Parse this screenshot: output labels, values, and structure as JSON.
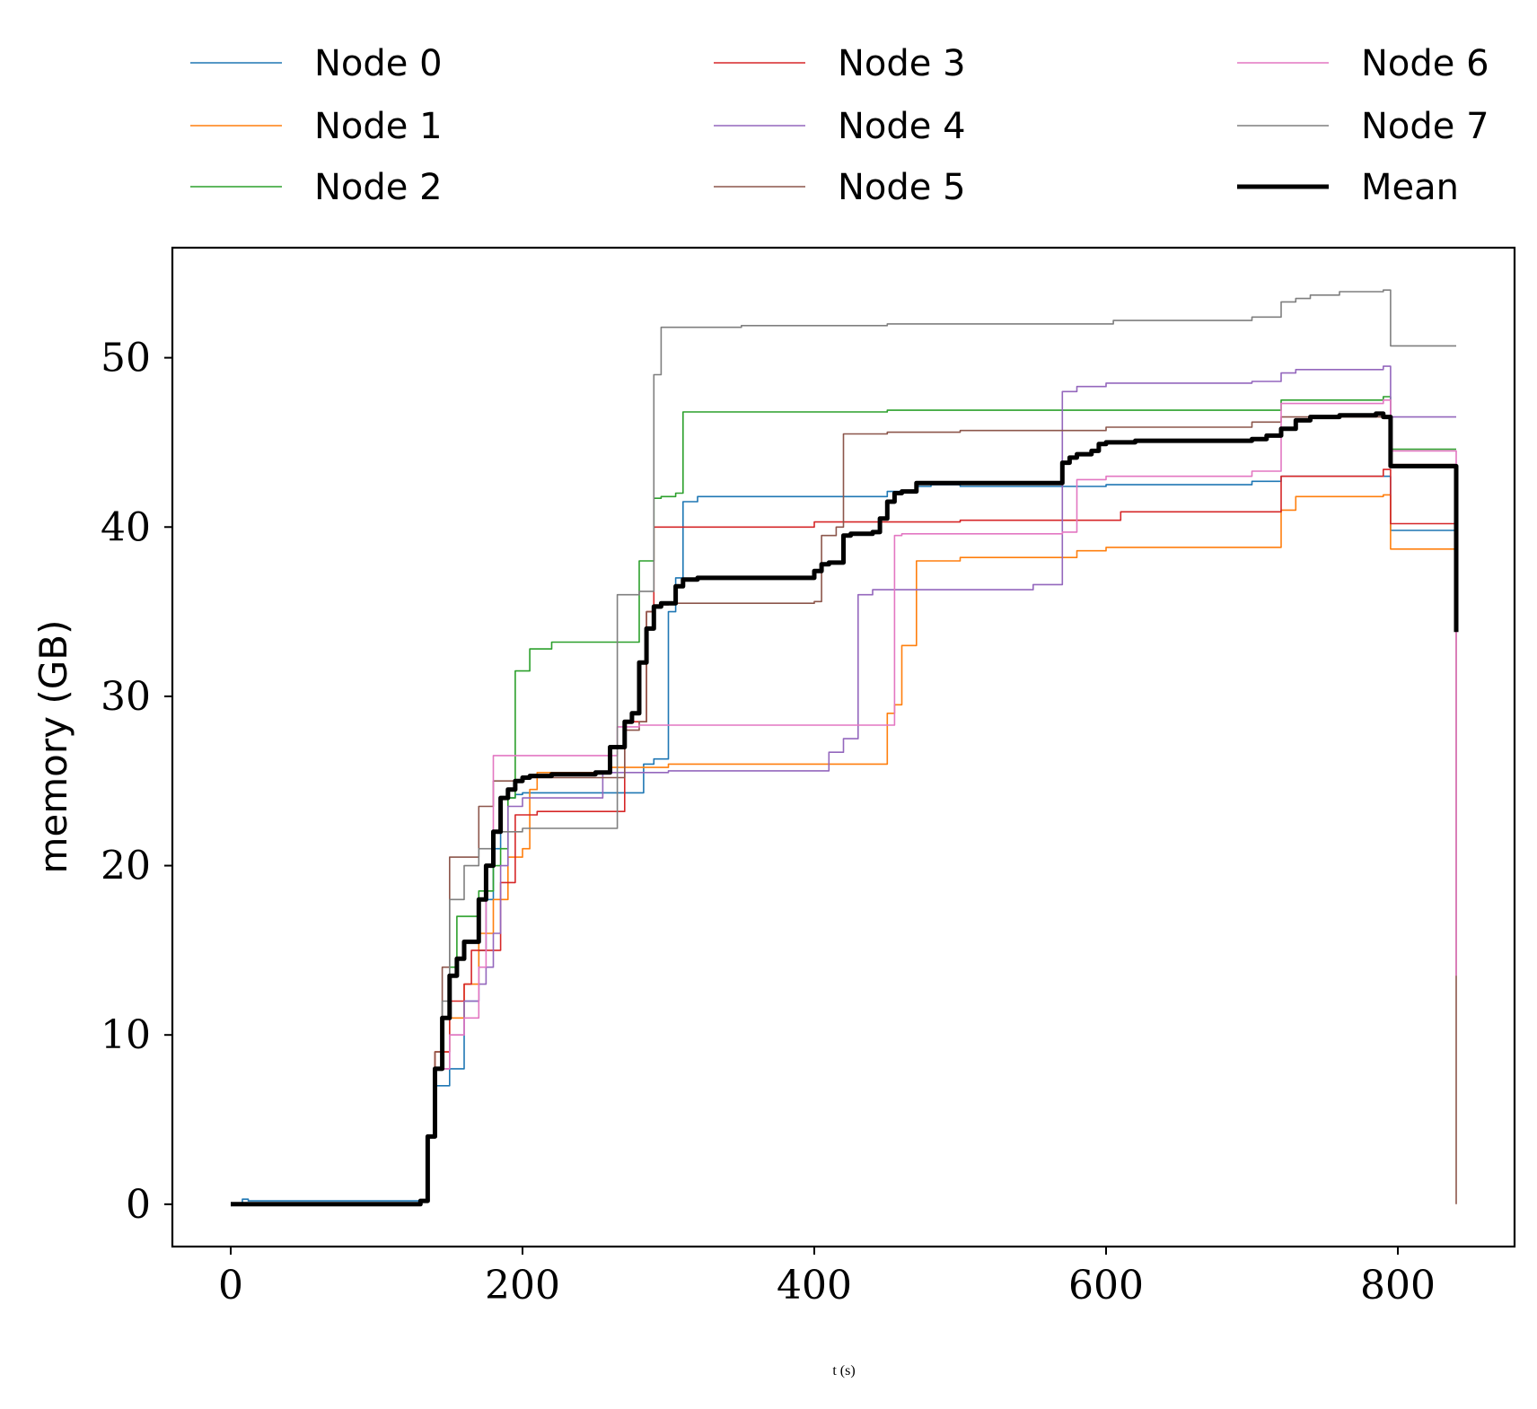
{
  "chart_data": {
    "type": "line",
    "title": "",
    "xlabel_var": "t",
    "xlabel_unit": " (s)",
    "ylabel": "memory (GB)",
    "xlim": [
      -40,
      880
    ],
    "ylim": [
      -2.5,
      56.5
    ],
    "xticks": [
      0,
      200,
      400,
      600,
      800
    ],
    "yticks": [
      0,
      10,
      20,
      30,
      40,
      50
    ],
    "legend_position": "top",
    "series": [
      {
        "name": "Node 0",
        "color": "#1f77b4",
        "width": 1.6,
        "x": [
          0,
          8,
          12,
          15,
          130,
          135,
          140,
          145,
          150,
          160,
          170,
          175,
          180,
          185,
          195,
          200,
          230,
          260,
          280,
          283,
          290,
          300,
          305,
          310,
          320,
          400,
          450,
          470,
          480,
          500,
          600,
          700,
          720,
          790,
          795,
          840
        ],
        "y": [
          0,
          0.3,
          0.2,
          0.2,
          0.2,
          4,
          7,
          7,
          8,
          12,
          15,
          18,
          21,
          24,
          24.2,
          24.3,
          24.3,
          24.3,
          24.3,
          26,
          26.3,
          35,
          37,
          41.5,
          41.8,
          41.8,
          42.1,
          42.4,
          42.5,
          42.4,
          42.5,
          42.7,
          43,
          43,
          39.8,
          39.8
        ]
      },
      {
        "name": "Node 1",
        "color": "#ff7f0e",
        "width": 1.6,
        "x": [
          0,
          130,
          135,
          140,
          150,
          160,
          170,
          180,
          190,
          200,
          205,
          210,
          260,
          300,
          400,
          440,
          450,
          455,
          460,
          470,
          500,
          560,
          580,
          600,
          700,
          720,
          730,
          790,
          795,
          840
        ],
        "y": [
          0,
          0.2,
          4,
          9,
          11,
          13,
          16,
          18,
          20.5,
          21,
          24.5,
          25.5,
          25.8,
          26,
          26,
          26,
          29,
          29.5,
          33,
          38,
          38.2,
          38.2,
          38.6,
          38.8,
          38.8,
          41,
          41.8,
          41.9,
          38.7,
          38.7
        ]
      },
      {
        "name": "Node 2",
        "color": "#2ca02c",
        "width": 1.6,
        "x": [
          0,
          130,
          135,
          140,
          145,
          150,
          155,
          160,
          170,
          180,
          185,
          190,
          195,
          205,
          220,
          240,
          260,
          270,
          280,
          290,
          295,
          305,
          310,
          340,
          450,
          500,
          600,
          700,
          720,
          790,
          795,
          840
        ],
        "y": [
          0,
          0.2,
          4,
          8,
          11,
          14,
          17,
          17,
          18.5,
          20,
          21,
          24,
          31.5,
          32.8,
          33.2,
          33.2,
          33.2,
          33.2,
          38,
          41.7,
          41.8,
          42,
          46.8,
          46.8,
          46.9,
          46.9,
          46.9,
          46.9,
          47.5,
          47.7,
          44.6,
          44.6
        ]
      },
      {
        "name": "Node 3",
        "color": "#d62728",
        "width": 1.6,
        "x": [
          0,
          130,
          135,
          140,
          150,
          160,
          165,
          175,
          185,
          195,
          200,
          210,
          255,
          270,
          280,
          285,
          290,
          300,
          380,
          400,
          500,
          560,
          610,
          700,
          720,
          790,
          795,
          840
        ],
        "y": [
          0,
          0.2,
          4,
          9,
          12,
          13,
          15,
          15,
          19,
          23,
          23,
          23.2,
          23.2,
          28.5,
          28.5,
          35,
          40,
          40,
          40,
          40.3,
          40.4,
          40.4,
          40.9,
          40.9,
          43,
          43.4,
          40.2,
          40.2
        ]
      },
      {
        "name": "Node 4",
        "color": "#9467bd",
        "width": 1.6,
        "x": [
          0,
          130,
          135,
          140,
          150,
          160,
          170,
          175,
          180,
          185,
          190,
          200,
          255,
          300,
          350,
          400,
          410,
          420,
          430,
          440,
          450,
          500,
          550,
          560,
          570,
          580,
          600,
          650,
          700,
          720,
          730,
          790,
          795,
          840
        ],
        "y": [
          0,
          0.2,
          4,
          8,
          10,
          12,
          13,
          14,
          16,
          20,
          23.5,
          24,
          25.5,
          25.6,
          25.6,
          25.6,
          26.7,
          27.5,
          36,
          36.3,
          36.3,
          36.3,
          36.6,
          36.6,
          48,
          48.3,
          48.5,
          48.5,
          48.6,
          49.1,
          49.3,
          49.5,
          46.5,
          46.5
        ]
      },
      {
        "name": "Node 5",
        "color": "#8c564b",
        "width": 1.6,
        "x": [
          0,
          130,
          135,
          140,
          145,
          150,
          160,
          170,
          180,
          190,
          200,
          250,
          260,
          270,
          280,
          285,
          290,
          300,
          350,
          400,
          405,
          415,
          420,
          450,
          500,
          600,
          700,
          720,
          790,
          795,
          840,
          840
        ],
        "y": [
          0,
          0.2,
          4,
          9,
          14,
          20.5,
          20.5,
          23.5,
          25,
          25,
          25.2,
          25.2,
          25.2,
          28,
          28.5,
          35,
          35.4,
          35.5,
          35.5,
          35.6,
          39.5,
          40,
          45.5,
          45.6,
          45.7,
          45.9,
          46.2,
          46.5,
          46.5,
          43.7,
          43.7,
          0
        ]
      },
      {
        "name": "Node 6",
        "color": "#e377c2",
        "width": 1.6,
        "x": [
          0,
          130,
          135,
          140,
          150,
          160,
          170,
          175,
          180,
          200,
          230,
          260,
          265,
          280,
          300,
          350,
          400,
          420,
          445,
          455,
          460,
          500,
          560,
          570,
          580,
          600,
          700,
          720,
          790,
          795,
          840,
          840
        ],
        "y": [
          0,
          0.2,
          4,
          8,
          10,
          11,
          14,
          20,
          26.5,
          26.5,
          26.5,
          26.5,
          28.2,
          28.3,
          28.3,
          28.3,
          28.3,
          28.3,
          28.3,
          39.5,
          39.6,
          39.6,
          39.6,
          39.7,
          42.8,
          43,
          43.3,
          47.3,
          47.5,
          44.5,
          44.5,
          13.5
        ]
      },
      {
        "name": "Node 7",
        "color": "#7f7f7f",
        "width": 1.6,
        "x": [
          0,
          130,
          135,
          140,
          145,
          150,
          160,
          170,
          180,
          190,
          200,
          220,
          240,
          250,
          260,
          265,
          270,
          280,
          290,
          295,
          300,
          350,
          400,
          450,
          500,
          600,
          605,
          700,
          720,
          730,
          740,
          760,
          790,
          795,
          840
        ],
        "y": [
          0,
          0.2,
          4,
          8,
          12,
          18,
          20,
          21,
          22,
          22,
          22.2,
          22.2,
          22.2,
          22.2,
          22.2,
          36,
          36,
          36.2,
          49,
          51.8,
          51.8,
          51.9,
          51.9,
          52,
          52,
          52,
          52.2,
          52.4,
          53.3,
          53.5,
          53.7,
          53.9,
          54,
          50.7,
          50.7
        ]
      },
      {
        "name": "Mean",
        "color": "#000000",
        "width": 5,
        "x": [
          0,
          130,
          135,
          140,
          145,
          150,
          155,
          160,
          170,
          175,
          180,
          185,
          190,
          195,
          200,
          205,
          220,
          250,
          255,
          260,
          270,
          275,
          280,
          285,
          290,
          295,
          300,
          305,
          310,
          320,
          350,
          395,
          400,
          405,
          410,
          420,
          425,
          440,
          445,
          450,
          455,
          460,
          470,
          480,
          500,
          565,
          570,
          575,
          580,
          590,
          595,
          600,
          620,
          650,
          700,
          710,
          720,
          730,
          740,
          760,
          785,
          790,
          795,
          800,
          830,
          838,
          840
        ],
        "y": [
          0,
          0.2,
          4,
          8,
          11,
          13.5,
          14.5,
          15.5,
          18,
          20,
          22,
          24,
          24.5,
          25,
          25.2,
          25.3,
          25.4,
          25.5,
          25.5,
          27,
          28.5,
          29,
          32,
          34,
          35.3,
          35.5,
          35.5,
          36.5,
          36.9,
          37,
          37,
          37,
          37.4,
          37.8,
          37.9,
          39.5,
          39.6,
          39.7,
          40.5,
          41.5,
          42,
          42.1,
          42.6,
          42.6,
          42.6,
          42.6,
          43.8,
          44.1,
          44.3,
          44.5,
          44.9,
          45,
          45.1,
          45.1,
          45.2,
          45.4,
          45.8,
          46.3,
          46.5,
          46.6,
          46.7,
          46.5,
          43.6,
          43.6,
          43.6,
          43.6,
          33.8
        ]
      }
    ]
  }
}
